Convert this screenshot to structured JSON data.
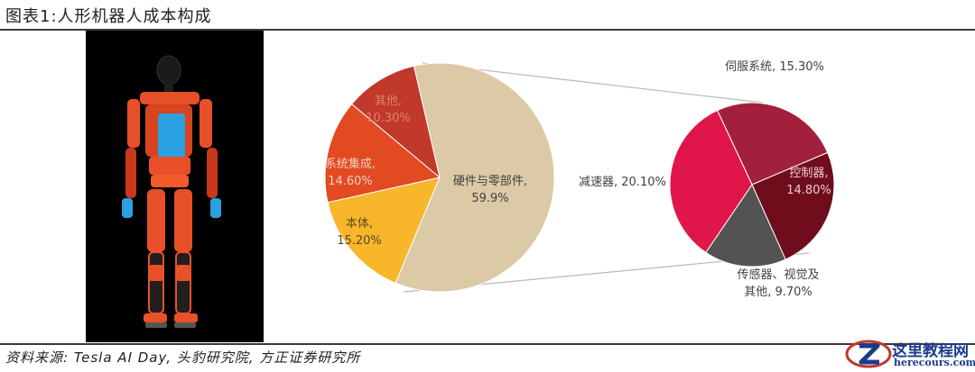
{
  "figure_title": "图表1:人形机器人成本构成",
  "source": "资料来源: Tesla AI Day, 头豹研究院, 方正证券研究所",
  "watermark": {
    "line1": "这里教程网",
    "line2": "herecours.com",
    "icon": "z-logo-icon"
  },
  "colors": {
    "rule": "#3a3a3a",
    "photo_bg": "#000000",
    "robot_orange": "#e8502a",
    "robot_blue": "#2aa0e0"
  },
  "chart_data": [
    {
      "type": "pie",
      "slices": [
        {
          "label": "硬件与零部件,",
          "value_label": "59.9%",
          "value": 59.9,
          "color": "#dcc9a6"
        },
        {
          "label": "本体,",
          "value_label": "15.20%",
          "value": 15.2,
          "color": "#f8b62b"
        },
        {
          "label": "系统集成,",
          "value_label": "14.60%",
          "value": 14.6,
          "color": "#e24a21"
        },
        {
          "label": "其他,",
          "value_label": "10.30%",
          "value": 10.3,
          "color": "#c0392b"
        }
      ]
    },
    {
      "type": "pie",
      "slices": [
        {
          "label": "伺服系统, 15.30%",
          "value": 15.3,
          "color": "#a3203d"
        },
        {
          "label": "控制器,",
          "value_label": "14.80%",
          "value": 14.8,
          "color": "#6f0d1c"
        },
        {
          "label": "传感器、视觉及",
          "value_label": "其他, 9.70%",
          "value": 9.7,
          "color": "#535353"
        },
        {
          "label": "减速器, 20.10%",
          "value": 20.1,
          "color": "#e0164b"
        }
      ]
    }
  ]
}
